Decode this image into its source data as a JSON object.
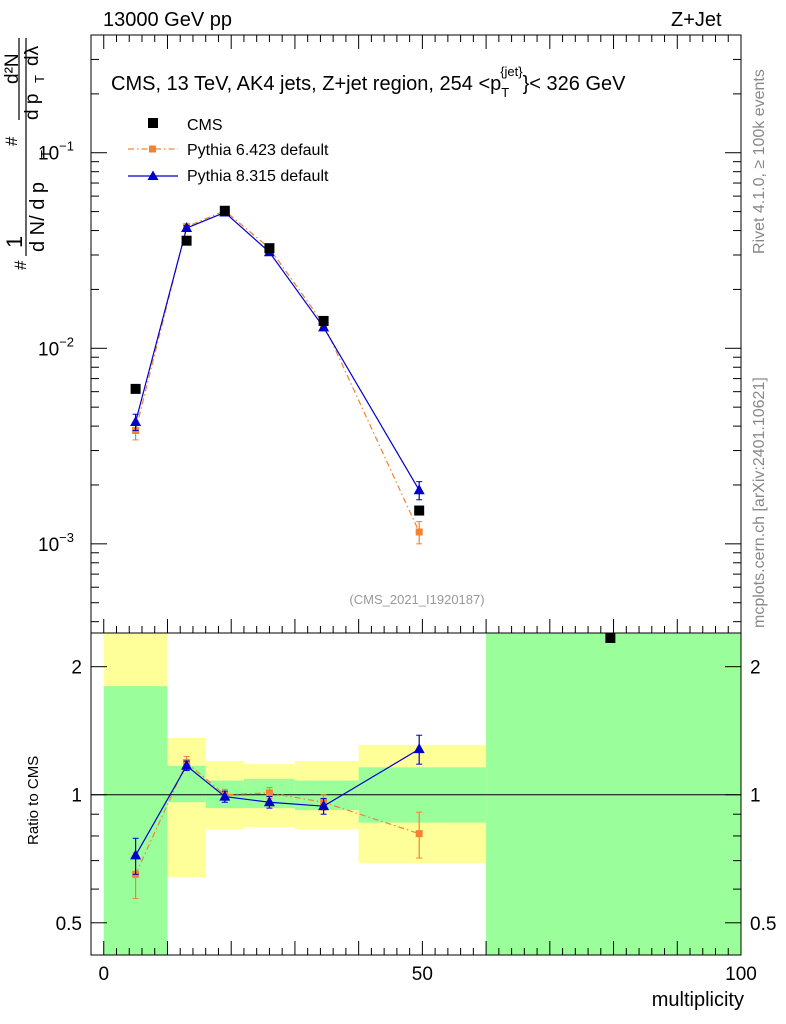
{
  "header": {
    "left": "13000 GeV pp",
    "right": "Z+Jet"
  },
  "side_labels": {
    "rivet": "Rivet 4.1.0, ≥ 100k events",
    "mcplots": "mcplots.cern.ch [arXiv:2401.10621]"
  },
  "chart_data": [
    {
      "type": "scatter",
      "panel": "main",
      "title": "CMS, 13 TeV, AK4 jets, Z+jet region, 254 < p_T^{jet} < 326 GeV",
      "title_parts": {
        "main": "CMS, 13 TeV, AK4 jets, Z+jet region, 254 <p",
        "sub": "T",
        "sup": "{jet}",
        "tail": "}< 326 GeV"
      },
      "xlabel": "",
      "ylabel": "1/(dN/dp_T) # d²N/(dp_T dλ)",
      "ylabel_parts": {
        "hash": "#",
        "one": "1",
        "dn": "d N/ d p",
        "t": "T",
        "hash2": "#",
        "d2n": "d²N",
        "dpt": "d p",
        "t2": "T",
        "dl": "dλ"
      },
      "y_log": true,
      "xlim": [
        -2,
        100
      ],
      "ylim": [
        0.00035,
        0.4
      ],
      "y_ticks": [
        {
          "value": 0.001,
          "base": "10",
          "exp": "−3"
        },
        {
          "value": 0.01,
          "base": "10",
          "exp": "−2"
        },
        {
          "value": 0.1,
          "base": "10",
          "exp": "−1"
        }
      ],
      "watermark": "(CMS_2021_I1920187)",
      "legend_position": "top-left",
      "series": [
        {
          "name": "CMS",
          "color": "#000000",
          "marker": "square",
          "x": [
            5,
            13,
            19,
            26,
            34.5,
            49.5,
            79.5
          ],
          "y": [
            0.0062,
            0.0355,
            0.0505,
            0.0325,
            0.0138,
            0.00148,
            0.00033
          ]
        },
        {
          "name": "Pythia 6.423 default",
          "color": "#f58231",
          "marker": "square",
          "line": "dashdot",
          "x": [
            5,
            13,
            19,
            26,
            34.5,
            49.5
          ],
          "y": [
            0.0038,
            0.0418,
            0.0505,
            0.0325,
            0.0133,
            0.00115
          ],
          "err": [
            0.0004,
            0.0015,
            0.0012,
            0.001,
            0.0006,
            0.00015
          ]
        },
        {
          "name": "Pythia 8.315 default",
          "color": "#0000cc",
          "marker": "triangle",
          "line": "solid",
          "x": [
            5,
            13,
            19,
            26,
            34.5,
            49.5
          ],
          "y": [
            0.0042,
            0.0412,
            0.0495,
            0.031,
            0.0128,
            0.00188
          ],
          "err": [
            0.0004,
            0.0012,
            0.0011,
            0.0009,
            0.0005,
            0.0002
          ]
        }
      ]
    },
    {
      "type": "scatter",
      "panel": "ratio",
      "xlabel": "multiplicity",
      "ylabel": "Ratio to CMS",
      "y_log": true,
      "xlim": [
        -2,
        100
      ],
      "ylim": [
        0.42,
        2.4
      ],
      "x_ticks": [
        0,
        50,
        100
      ],
      "y_ticks": [
        0.5,
        1,
        2
      ],
      "bands": {
        "edges": [
          0,
          10,
          16,
          22,
          30,
          40,
          60,
          100
        ],
        "green_low": [
          0.42,
          0.96,
          0.93,
          0.93,
          0.92,
          0.86,
          0.42
        ],
        "green_high": [
          1.8,
          1.17,
          1.08,
          1.09,
          1.08,
          1.16,
          2.4
        ],
        "yellow_low": [
          0.42,
          0.64,
          0.83,
          0.84,
          0.83,
          0.69,
          0.42
        ],
        "yellow_high": [
          2.4,
          1.36,
          1.2,
          1.18,
          1.2,
          1.31,
          2.4
        ],
        "green_color": "#9aff9a",
        "yellow_color": "#ffff99"
      },
      "series": [
        {
          "name": "Pythia 6.423 default",
          "color": "#f58231",
          "marker": "square",
          "line": "dashdot",
          "x": [
            5,
            13,
            19,
            26,
            34.5,
            49.5
          ],
          "y": [
            0.65,
            1.19,
            1.0,
            1.01,
            0.96,
            0.81
          ],
          "err": [
            0.08,
            0.04,
            0.03,
            0.03,
            0.04,
            0.1
          ]
        },
        {
          "name": "Pythia 8.315 default",
          "color": "#0000cc",
          "marker": "triangle",
          "line": "solid",
          "x": [
            5,
            13,
            19,
            26,
            34.5,
            49.5
          ],
          "y": [
            0.72,
            1.17,
            0.99,
            0.96,
            0.94,
            1.28
          ],
          "err": [
            0.07,
            0.03,
            0.03,
            0.03,
            0.04,
            0.1
          ]
        }
      ]
    }
  ]
}
